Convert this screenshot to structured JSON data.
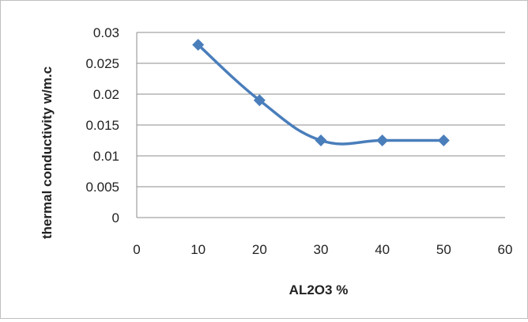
{
  "chart_data": {
    "type": "line",
    "x": [
      10,
      20,
      30,
      40,
      50
    ],
    "series": [
      {
        "values": [
          0.028,
          0.019,
          0.0125,
          0.0125,
          0.0125
        ]
      }
    ],
    "xlabel": "AL2O3 %",
    "ylabel": "thermal conductivity w/m.c",
    "xlim": [
      0,
      60
    ],
    "ylim": [
      0,
      0.03
    ],
    "x_ticks": [
      "0",
      "10",
      "20",
      "30",
      "40",
      "50",
      "60"
    ],
    "y_ticks": [
      "0",
      "0.005",
      "0.01",
      "0.015",
      "0.02",
      "0.025",
      "0.03"
    ],
    "grid": "horizontal",
    "legend": "none",
    "line_style": "smoothed",
    "marker": "diamond",
    "colors": {
      "series": "#4a7ebb",
      "grid": "#8c8c8c",
      "axis": "#8c8c8c"
    }
  }
}
